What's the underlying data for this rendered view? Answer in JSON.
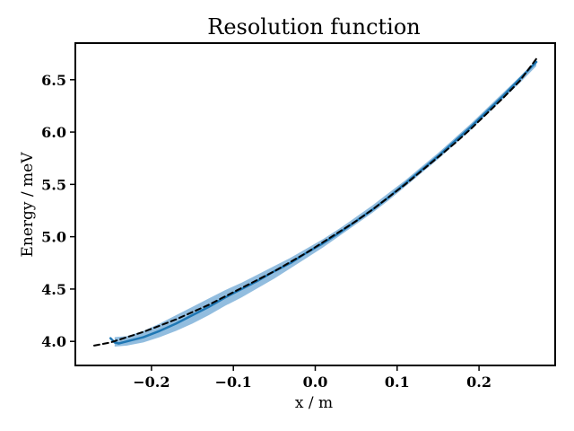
{
  "chart_data": {
    "type": "line",
    "title": "Resolution function",
    "xlabel": "x / m",
    "ylabel": "Energy / meV",
    "xlim": [
      -0.293,
      0.293
    ],
    "ylim": [
      3.77,
      6.85
    ],
    "x_ticks": [
      -0.2,
      -0.1,
      0.0,
      0.1,
      0.2
    ],
    "x_tick_labels": [
      "−0.2",
      "−0.1",
      "0.0",
      "0.1",
      "0.2"
    ],
    "y_ticks": [
      4.0,
      4.5,
      5.0,
      5.5,
      6.0,
      6.5
    ],
    "y_tick_labels": [
      "4.0",
      "4.5",
      "5.0",
      "5.5",
      "6.0",
      "6.5"
    ],
    "grid": false,
    "series": [
      {
        "style": "band",
        "color": "#7fb2d9",
        "x": [
          -0.245,
          -0.23,
          -0.21,
          -0.19,
          -0.17,
          -0.15,
          -0.13,
          -0.11,
          -0.09,
          -0.07,
          -0.05,
          -0.03,
          -0.01,
          0.01,
          0.03,
          0.05,
          0.07,
          0.09,
          0.11,
          0.13,
          0.15,
          0.17,
          0.19,
          0.21,
          0.23,
          0.25,
          0.27
        ],
        "upper": [
          4.04,
          4.05,
          4.1,
          4.17,
          4.25,
          4.33,
          4.41,
          4.49,
          4.56,
          4.64,
          4.72,
          4.8,
          4.89,
          4.98,
          5.08,
          5.19,
          5.3,
          5.42,
          5.54,
          5.67,
          5.8,
          5.94,
          6.08,
          6.23,
          6.38,
          6.53,
          6.69
        ],
        "lower": [
          3.95,
          3.96,
          3.99,
          4.04,
          4.1,
          4.17,
          4.25,
          4.34,
          4.42,
          4.51,
          4.6,
          4.7,
          4.8,
          4.9,
          5.01,
          5.12,
          5.23,
          5.35,
          5.48,
          5.61,
          5.74,
          5.88,
          6.02,
          6.17,
          6.32,
          6.47,
          6.63
        ]
      },
      {
        "style": "line",
        "color": "#1f77b4",
        "x": [
          -0.25,
          -0.245,
          -0.24,
          -0.23,
          -0.21,
          -0.19,
          -0.17,
          -0.15,
          -0.13,
          -0.11,
          -0.09,
          -0.07,
          -0.05,
          -0.03,
          -0.01,
          0.01,
          0.03,
          0.05,
          0.07,
          0.09,
          0.11,
          0.13,
          0.15,
          0.17,
          0.19,
          0.21,
          0.23,
          0.25,
          0.27
        ],
        "y": [
          4.03,
          3.99,
          3.98,
          4.0,
          4.04,
          4.1,
          4.17,
          4.25,
          4.33,
          4.42,
          4.5,
          4.58,
          4.67,
          4.75,
          4.85,
          4.94,
          5.04,
          5.15,
          5.26,
          5.38,
          5.51,
          5.64,
          5.77,
          5.91,
          6.05,
          6.2,
          6.35,
          6.51,
          6.67
        ]
      },
      {
        "style": "dashed",
        "color": "#000000",
        "x": [
          -0.27,
          -0.25,
          -0.23,
          -0.21,
          -0.19,
          -0.17,
          -0.15,
          -0.13,
          -0.11,
          -0.09,
          -0.07,
          -0.05,
          -0.03,
          -0.01,
          0.01,
          0.03,
          0.05,
          0.07,
          0.09,
          0.11,
          0.13,
          0.15,
          0.17,
          0.19,
          0.21,
          0.23,
          0.25,
          0.27
        ],
        "y": [
          3.96,
          3.99,
          4.04,
          4.09,
          4.15,
          4.21,
          4.28,
          4.35,
          4.43,
          4.51,
          4.59,
          4.67,
          4.76,
          4.85,
          4.95,
          5.05,
          5.15,
          5.26,
          5.38,
          5.5,
          5.63,
          5.76,
          5.89,
          6.03,
          6.18,
          6.33,
          6.49,
          6.7
        ]
      }
    ]
  }
}
